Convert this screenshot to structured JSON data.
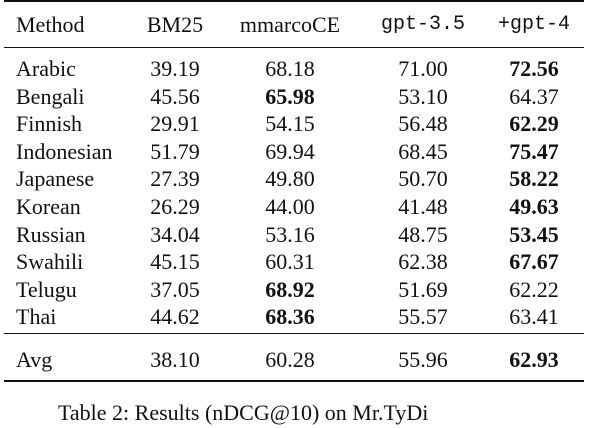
{
  "table": {
    "headers": [
      "Method",
      "BM25",
      "mmarcoCE",
      "gpt-3.5",
      "+gpt-4"
    ],
    "rows": [
      {
        "method": "Arabic",
        "values": [
          "39.19",
          "68.18",
          "71.00",
          "72.56"
        ],
        "bold": [
          false,
          false,
          false,
          true
        ]
      },
      {
        "method": "Bengali",
        "values": [
          "45.56",
          "65.98",
          "53.10",
          "64.37"
        ],
        "bold": [
          false,
          true,
          false,
          false
        ]
      },
      {
        "method": "Finnish",
        "values": [
          "29.91",
          "54.15",
          "56.48",
          "62.29"
        ],
        "bold": [
          false,
          false,
          false,
          true
        ]
      },
      {
        "method": "Indonesian",
        "values": [
          "51.79",
          "69.94",
          "68.45",
          "75.47"
        ],
        "bold": [
          false,
          false,
          false,
          true
        ]
      },
      {
        "method": "Japanese",
        "values": [
          "27.39",
          "49.80",
          "50.70",
          "58.22"
        ],
        "bold": [
          false,
          false,
          false,
          true
        ]
      },
      {
        "method": "Korean",
        "values": [
          "26.29",
          "44.00",
          "41.48",
          "49.63"
        ],
        "bold": [
          false,
          false,
          false,
          true
        ]
      },
      {
        "method": "Russian",
        "values": [
          "34.04",
          "53.16",
          "48.75",
          "53.45"
        ],
        "bold": [
          false,
          false,
          false,
          true
        ]
      },
      {
        "method": "Swahili",
        "values": [
          "45.15",
          "60.31",
          "62.38",
          "67.67"
        ],
        "bold": [
          false,
          false,
          false,
          true
        ]
      },
      {
        "method": "Telugu",
        "values": [
          "37.05",
          "68.92",
          "51.69",
          "62.22"
        ],
        "bold": [
          false,
          true,
          false,
          false
        ]
      },
      {
        "method": "Thai",
        "values": [
          "44.62",
          "68.36",
          "55.57",
          "63.41"
        ],
        "bold": [
          false,
          true,
          false,
          false
        ]
      }
    ],
    "avg": {
      "method": "Avg",
      "values": [
        "38.10",
        "60.28",
        "55.96",
        "62.93"
      ],
      "bold": [
        false,
        false,
        false,
        true
      ]
    }
  },
  "caption": "Table 2: Results (nDCG@10) on Mr.TyDi"
}
